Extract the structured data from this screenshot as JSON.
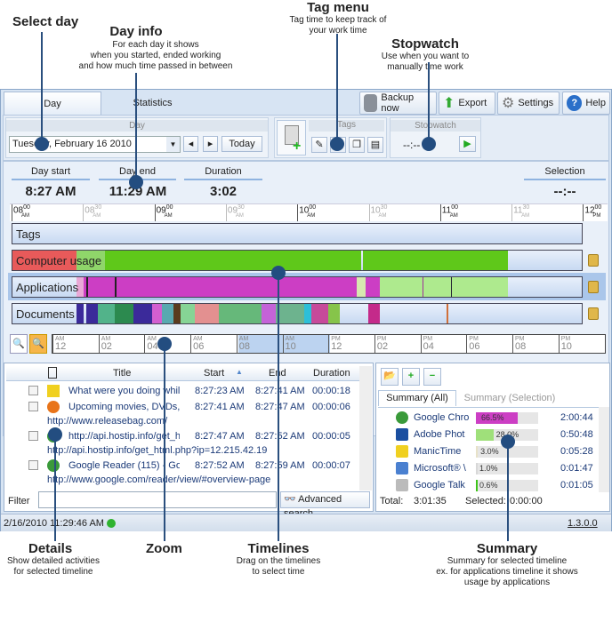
{
  "annotations": {
    "select_day": {
      "title": "Select day"
    },
    "day_info": {
      "title": "Day info",
      "desc": [
        "For each day it shows",
        "when you started, ended working",
        "and how much time passed in between"
      ]
    },
    "tag_menu": {
      "title": "Tag menu",
      "desc": [
        "Tag time to keep track of",
        "your work time"
      ]
    },
    "stopwatch": {
      "title": "Stopwatch",
      "desc": [
        "Use when you want to",
        "manually time work"
      ]
    },
    "details": {
      "title": "Details",
      "desc": [
        "Show detailed activities",
        "for selected timeline"
      ]
    },
    "zoom": {
      "title": "Zoom"
    },
    "timelines": {
      "title": "Timelines",
      "desc": [
        "Drag on the timelines",
        "to select time"
      ]
    },
    "summary": {
      "title": "Summary",
      "desc": [
        "Summary for selected timeline",
        "ex. for applications timeline it shows",
        "usage by applications"
      ]
    }
  },
  "tabs": [
    {
      "label": "Day",
      "active": true
    },
    {
      "label": "Statistics",
      "active": false
    }
  ],
  "top_buttons": {
    "backup": "Backup now",
    "export": "Export",
    "settings": "Settings",
    "help": "Help"
  },
  "toolbar": {
    "day_group": "Day",
    "date": "Tuesday, February 16 2010",
    "today": "Today",
    "tags_group": "Tags",
    "stopwatch_group": "Stopwatch",
    "stopwatch_value": "--:--"
  },
  "info": {
    "day_start_label": "Day start",
    "day_start": "8:27 AM",
    "day_end_label": "Day end",
    "day_end": "11:29 AM",
    "duration_label": "Duration",
    "duration": "3:02",
    "selection_label": "Selection",
    "selection": "--:--"
  },
  "ruler": [
    {
      "h": "08",
      "m": "00",
      "ap": "AM",
      "major": true
    },
    {
      "h": "08",
      "m": "30",
      "ap": "AM",
      "major": false
    },
    {
      "h": "09",
      "m": "00",
      "ap": "AM",
      "major": true
    },
    {
      "h": "09",
      "m": "30",
      "ap": "AM",
      "major": false
    },
    {
      "h": "10",
      "m": "00",
      "ap": "AM",
      "major": true
    },
    {
      "h": "10",
      "m": "30",
      "ap": "AM",
      "major": false
    },
    {
      "h": "11",
      "m": "00",
      "ap": "AM",
      "major": true
    },
    {
      "h": "11",
      "m": "30",
      "ap": "AM",
      "major": false
    },
    {
      "h": "12",
      "m": "00",
      "ap": "PM",
      "major": true
    }
  ],
  "timelines": [
    {
      "label": "Tags",
      "locked": false,
      "segments": []
    },
    {
      "label": "Computer usage",
      "locked": true,
      "segments": [
        [
          8.0,
          8.45,
          "#e85a5a"
        ],
        [
          8.45,
          8.65,
          "#8fd66a"
        ],
        [
          8.65,
          10.45,
          "#5fc81a"
        ],
        [
          10.46,
          11.48,
          "#5fc81a"
        ]
      ]
    },
    {
      "label": "Applications",
      "locked": true,
      "selected": true,
      "segments": [
        [
          8.45,
          8.5,
          "#e9a8d6"
        ],
        [
          8.5,
          10.42,
          "#cc3ec4"
        ],
        [
          10.42,
          10.48,
          "#d7e8b0"
        ],
        [
          10.48,
          10.58,
          "#cc3ec4"
        ],
        [
          10.58,
          11.48,
          "#aeea8e"
        ],
        [
          8.52,
          8.53,
          "#222"
        ],
        [
          8.72,
          8.73,
          "#222"
        ],
        [
          10.88,
          10.89,
          "#a0309a"
        ],
        [
          11.08,
          11.09,
          "#223"
        ]
      ]
    },
    {
      "label": "Documents",
      "locked": true,
      "segments": [
        [
          8.45,
          8.5,
          "#3b2a9a"
        ],
        [
          8.52,
          8.6,
          "#3b2a9a"
        ],
        [
          8.6,
          8.72,
          "#52b38a"
        ],
        [
          8.72,
          8.85,
          "#2c8a4f"
        ],
        [
          8.85,
          8.98,
          "#3b2a9a"
        ],
        [
          8.98,
          9.05,
          "#d25fd0"
        ],
        [
          9.05,
          9.13,
          "#58a9b0"
        ],
        [
          9.13,
          9.18,
          "#5a3b1e"
        ],
        [
          9.18,
          9.28,
          "#86d495"
        ],
        [
          9.28,
          9.45,
          "#e39090"
        ],
        [
          9.45,
          9.75,
          "#66b87a"
        ],
        [
          9.75,
          9.85,
          "#c463d8"
        ],
        [
          9.85,
          10.05,
          "#6db38e"
        ],
        [
          10.05,
          10.1,
          "#2dbfd8"
        ],
        [
          10.1,
          10.22,
          "#c74a9a"
        ],
        [
          10.22,
          10.3,
          "#86c44a"
        ],
        [
          10.5,
          10.58,
          "#c42a8a"
        ],
        [
          11.05,
          11.06,
          "#d0703a"
        ]
      ]
    }
  ],
  "zoom_ruler": [
    {
      "ap": "AM",
      "h": "12"
    },
    {
      "ap": "AM",
      "h": "02"
    },
    {
      "ap": "AM",
      "h": "04"
    },
    {
      "ap": "AM",
      "h": "06"
    },
    {
      "ap": "AM",
      "h": "08"
    },
    {
      "ap": "AM",
      "h": "10"
    },
    {
      "ap": "PM",
      "h": "12"
    },
    {
      "ap": "PM",
      "h": "02"
    },
    {
      "ap": "PM",
      "h": "04"
    },
    {
      "ap": "PM",
      "h": "06"
    },
    {
      "ap": "PM",
      "h": "08"
    },
    {
      "ap": "PM",
      "h": "10"
    }
  ],
  "details": {
    "columns": {
      "title": "Title",
      "start": "Start",
      "end": "End",
      "duration": "Duration"
    },
    "rows": [
      {
        "icon": "manictime-icon",
        "title": "What were you doing whil",
        "start": "8:27:23 AM",
        "end": "8:27:41 AM",
        "duration": "00:00:18",
        "url": ""
      },
      {
        "icon": "firefox-icon",
        "title": "Upcoming movies, DVDs, \\",
        "start": "8:27:41 AM",
        "end": "8:27:47 AM",
        "duration": "00:00:06",
        "url": "http://www.releasebag.com/"
      },
      {
        "icon": "chrome-icon",
        "title": "http://api.hostip.info/get_h",
        "start": "8:27:47 AM",
        "end": "8:27:52 AM",
        "duration": "00:00:05",
        "url": "http://api.hostip.info/get_html.php?ip=12.215.42.19"
      },
      {
        "icon": "chrome-icon",
        "title": "Google Reader (115) - Goc",
        "start": "8:27:52 AM",
        "end": "8:27:59 AM",
        "duration": "00:00:07",
        "url": "http://www.google.com/reader/view/#overview-page"
      }
    ],
    "filter_label": "Filter",
    "filter_value": "",
    "advanced_search": "Advanced search"
  },
  "summary": {
    "tabs": [
      "Summary (All)",
      "Summary (Selection)"
    ],
    "rows": [
      {
        "icon": "chrome-icon",
        "name": "Google Chro",
        "percent": 66.5,
        "label": "66.5%",
        "time": "2:00:44",
        "color": "#cc3ec4"
      },
      {
        "icon": "photoshop-icon",
        "name": "Adobe Phot ",
        "percent": 28.0,
        "label": "28.0%",
        "time": "0:50:48",
        "color": "#9fe07a"
      },
      {
        "icon": "manictime-icon",
        "name": "ManicTime",
        "percent": 3.0,
        "label": "3.0%",
        "time": "0:05:28",
        "color": "#e8e2c8"
      },
      {
        "icon": "windows-icon",
        "name": "Microsoft® \\",
        "percent": 1.0,
        "label": "1.0%",
        "time": "0:01:47",
        "color": "#d8d8d8"
      },
      {
        "icon": "talk-icon",
        "name": "Google Talk",
        "percent": 0.6,
        "label": "0.6%",
        "time": "0:01:05",
        "color": "#3ec41a"
      }
    ],
    "total_label": "Total:",
    "total": "3:01:35",
    "selected_label": "Selected:",
    "selected": "0:00:00"
  },
  "status": {
    "datetime": "2/16/2010 11:29:46 AM",
    "version": "1.3.0.0",
    "indicator_color": "#2fb32f"
  }
}
